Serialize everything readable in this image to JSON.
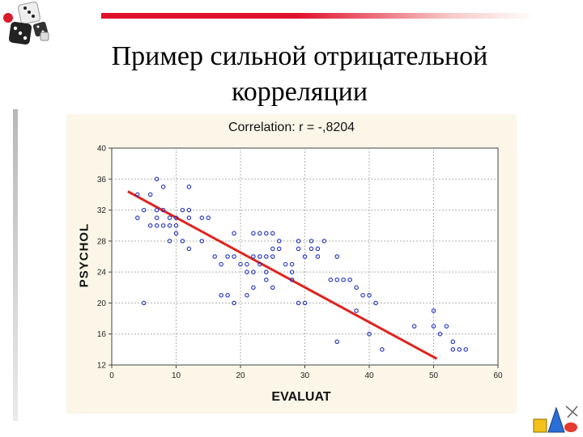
{
  "slide": {
    "title_line1": "Пример сильной отрицательной",
    "title_line2": "корреляции"
  },
  "colors": {
    "accent_bar": "#e0102a",
    "regression_line": "#e0231c",
    "points": "#1f2fbf",
    "panel_background": "#fbf6e8"
  },
  "chart_data": {
    "type": "scatter",
    "title": "Correlation: r = -,8204",
    "xlabel": "EVALUAT",
    "ylabel": "PSYCHOL",
    "xlim": [
      0,
      60
    ],
    "ylim": [
      12,
      40
    ],
    "x_ticks": [
      0,
      10,
      20,
      30,
      40,
      50,
      60
    ],
    "y_ticks": [
      12,
      16,
      20,
      24,
      28,
      32,
      36,
      40
    ],
    "grid": true,
    "points": [
      [
        7,
        36
      ],
      [
        4,
        34
      ],
      [
        6,
        34
      ],
      [
        8,
        35
      ],
      [
        12,
        35
      ],
      [
        5,
        32
      ],
      [
        7,
        32
      ],
      [
        8,
        32
      ],
      [
        11,
        32
      ],
      [
        12,
        32
      ],
      [
        4,
        31
      ],
      [
        7,
        31
      ],
      [
        9,
        31
      ],
      [
        10,
        31
      ],
      [
        12,
        31
      ],
      [
        14,
        31
      ],
      [
        15,
        31
      ],
      [
        6,
        30
      ],
      [
        7,
        30
      ],
      [
        8,
        30
      ],
      [
        9,
        30
      ],
      [
        10,
        30
      ],
      [
        10,
        29
      ],
      [
        19,
        29
      ],
      [
        22,
        29
      ],
      [
        23,
        29
      ],
      [
        24,
        29
      ],
      [
        25,
        29
      ],
      [
        9,
        28
      ],
      [
        11,
        28
      ],
      [
        14,
        28
      ],
      [
        26,
        28
      ],
      [
        29,
        28
      ],
      [
        31,
        28
      ],
      [
        33,
        28
      ],
      [
        12,
        27
      ],
      [
        25,
        27
      ],
      [
        26,
        27
      ],
      [
        29,
        27
      ],
      [
        31,
        27
      ],
      [
        32,
        27
      ],
      [
        16,
        26
      ],
      [
        18,
        26
      ],
      [
        19,
        26
      ],
      [
        22,
        26
      ],
      [
        23,
        26
      ],
      [
        24,
        26
      ],
      [
        25,
        26
      ],
      [
        30,
        26
      ],
      [
        32,
        26
      ],
      [
        35,
        26
      ],
      [
        17,
        25
      ],
      [
        20,
        25
      ],
      [
        21,
        25
      ],
      [
        23,
        25
      ],
      [
        27,
        25
      ],
      [
        28,
        25
      ],
      [
        21,
        24
      ],
      [
        22,
        24
      ],
      [
        24,
        24
      ],
      [
        28,
        24
      ],
      [
        24,
        23
      ],
      [
        28,
        23
      ],
      [
        34,
        23
      ],
      [
        35,
        23
      ],
      [
        36,
        23
      ],
      [
        37,
        23
      ],
      [
        22,
        22
      ],
      [
        25,
        22
      ],
      [
        38,
        22
      ],
      [
        17,
        21
      ],
      [
        18,
        21
      ],
      [
        21,
        21
      ],
      [
        39,
        21
      ],
      [
        40,
        21
      ],
      [
        5,
        20
      ],
      [
        19,
        20
      ],
      [
        29,
        20
      ],
      [
        30,
        20
      ],
      [
        41,
        20
      ],
      [
        38,
        19
      ],
      [
        50,
        19
      ],
      [
        47,
        17
      ],
      [
        50,
        17
      ],
      [
        52,
        17
      ],
      [
        40,
        16
      ],
      [
        51,
        16
      ],
      [
        35,
        15
      ],
      [
        53,
        15
      ],
      [
        42,
        14
      ],
      [
        53,
        14
      ],
      [
        54,
        14
      ],
      [
        55,
        14
      ]
    ],
    "regression_line": {
      "x": [
        2.5,
        50.5
      ],
      "y": [
        34.4,
        12.8
      ]
    }
  }
}
